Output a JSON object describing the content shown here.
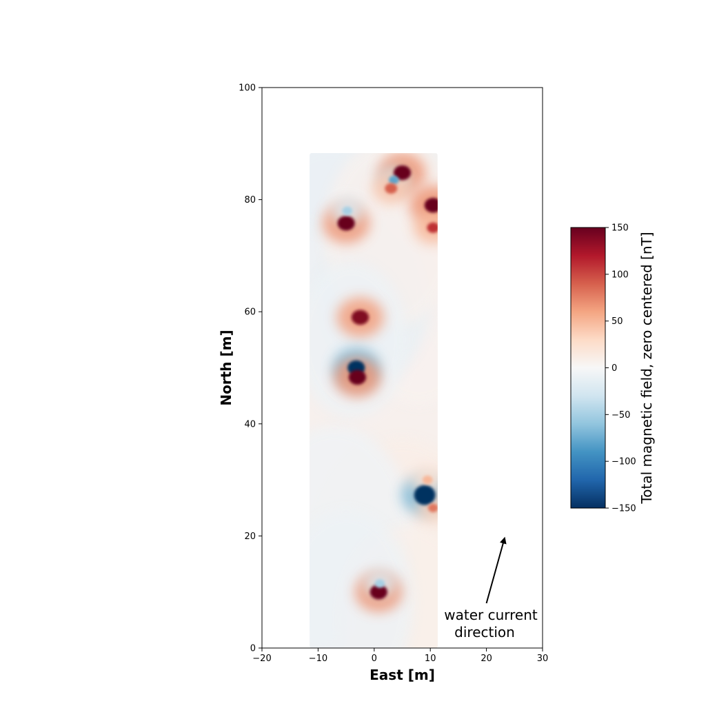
{
  "chart_data": {
    "type": "heatmap",
    "title": "",
    "xlabel": "East [m]",
    "ylabel": "North [m]",
    "xlim": [
      -20,
      30
    ],
    "ylim": [
      0,
      100
    ],
    "x_ticks": [
      -20,
      -10,
      0,
      10,
      20,
      30
    ],
    "x_tick_labels": [
      "−20",
      "−10",
      "0",
      "10",
      "20",
      "30"
    ],
    "y_ticks": [
      0,
      20,
      40,
      60,
      80,
      100
    ],
    "y_tick_labels": [
      "0",
      "20",
      "40",
      "60",
      "80",
      "100"
    ],
    "grid": false,
    "survey_extent": {
      "x": [
        -11.5,
        11.3
      ],
      "y": [
        0,
        88.3
      ]
    },
    "colormap": "RdBu_r",
    "colors": {
      "positive": "#67001f",
      "zero": "#f7f7f7",
      "negative": "#053061"
    },
    "colorbar": {
      "label": "Total magnetic field, zero centered [nT]",
      "range": [
        -150,
        150
      ],
      "ticks": [
        150,
        100,
        50,
        0,
        -50,
        -100,
        -150
      ],
      "tick_labels": [
        "150",
        "100",
        "50",
        "0",
        "−50",
        "−100",
        "−150"
      ]
    },
    "anomalies": [
      {
        "name": "dipole-a",
        "x": 5.0,
        "y": 84.8,
        "value": 150
      },
      {
        "name": "dipole-a-low",
        "x": 3.5,
        "y": 83.5,
        "value": -80
      },
      {
        "name": "dipole-a2",
        "x": 3.0,
        "y": 82.0,
        "value": 90
      },
      {
        "name": "dipole-b",
        "x": 10.5,
        "y": 79.0,
        "value": 150
      },
      {
        "name": "dipole-b2",
        "x": 10.5,
        "y": 75.0,
        "value": 110
      },
      {
        "name": "dipole-c",
        "x": -5.0,
        "y": 75.8,
        "value": 150
      },
      {
        "name": "dipole-c-low",
        "x": -4.8,
        "y": 78.0,
        "value": -50
      },
      {
        "name": "dipole-d",
        "x": -2.5,
        "y": 59.0,
        "value": 140
      },
      {
        "name": "dipole-e-low",
        "x": -3.2,
        "y": 50.0,
        "value": -150
      },
      {
        "name": "dipole-e",
        "x": -3.0,
        "y": 48.3,
        "value": 150
      },
      {
        "name": "dipole-f-low",
        "x": 9.0,
        "y": 27.3,
        "value": -150
      },
      {
        "name": "dipole-f-high",
        "x": 9.5,
        "y": 30.0,
        "value": 50
      },
      {
        "name": "dipole-f-high2",
        "x": 10.5,
        "y": 25.0,
        "value": 80
      },
      {
        "name": "dipole-g",
        "x": 0.8,
        "y": 10.0,
        "value": 150
      },
      {
        "name": "dipole-g-low",
        "x": 1.0,
        "y": 11.5,
        "value": -50
      }
    ],
    "annotation": {
      "text_line1": "water current",
      "text_line2": "direction",
      "arrow_from": [
        20,
        8
      ],
      "arrow_to": [
        23.2,
        19.5
      ]
    }
  }
}
